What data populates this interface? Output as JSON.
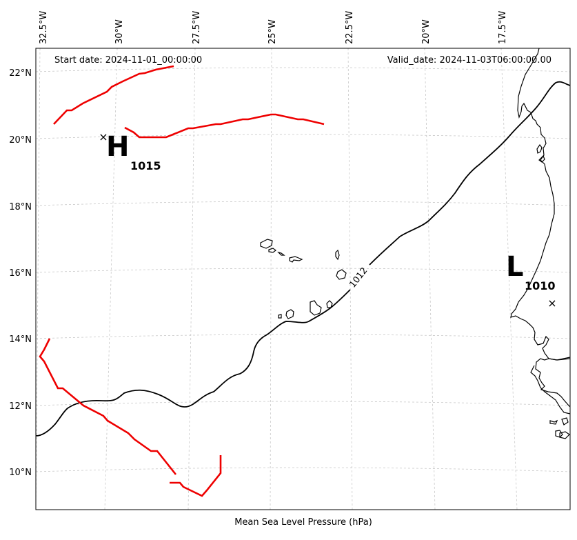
{
  "header": {
    "start_date": "Start date: 2024-11-01_00:00:00",
    "valid_date": "Valid_date: 2024-11-03T06:00:00.00"
  },
  "xlabel": "Mean Sea Level Pressure (hPa)",
  "lon_ticks": [
    "32.5°W",
    "30°W",
    "27.5°W",
    "25°W",
    "22.5°W",
    "20°W",
    "17.5°W"
  ],
  "lat_ticks": [
    "22°N",
    "20°N",
    "18°N",
    "16°N",
    "14°N",
    "12°N",
    "10°N"
  ],
  "pressure_centers": [
    {
      "type": "H",
      "value": "1015"
    },
    {
      "type": "L",
      "value": "1010"
    }
  ],
  "isobars": [
    {
      "value": "1012"
    }
  ],
  "colors": {
    "isobar": "#000000",
    "front": "#ee0000",
    "coastline": "#000000",
    "grid": "#c8c8c8"
  }
}
